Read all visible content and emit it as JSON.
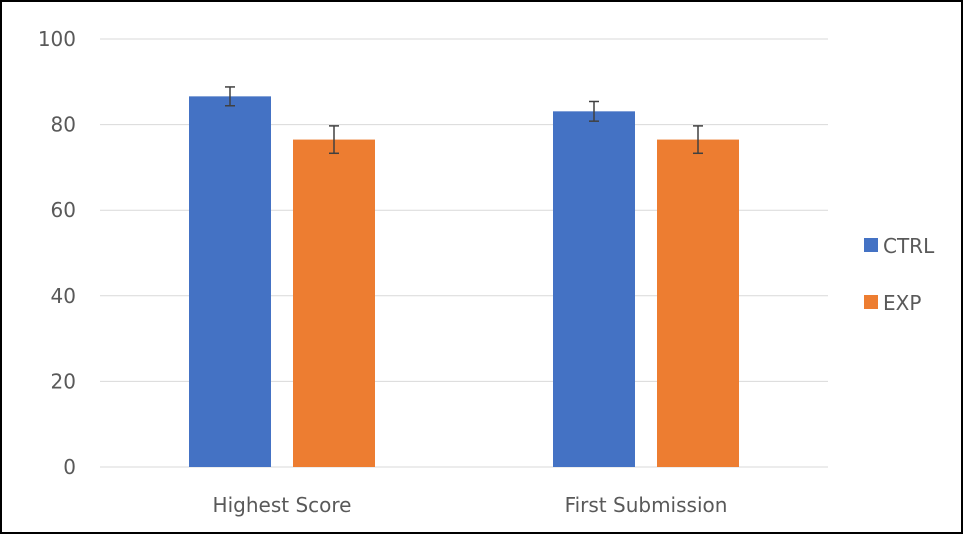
{
  "chart_data": {
    "type": "bar",
    "categories": [
      "Highest Score",
      "First Submission"
    ],
    "series": [
      {
        "name": "CTRL",
        "color": "#4472C4",
        "values": [
          86.6,
          83.1
        ],
        "errors": [
          2.2,
          2.3
        ]
      },
      {
        "name": "EXP",
        "color": "#ED7D31",
        "values": [
          76.5,
          76.5
        ],
        "errors": [
          3.2,
          3.2
        ]
      }
    ],
    "title": "",
    "xlabel": "",
    "ylabel": "",
    "ylim": [
      0,
      100
    ],
    "yticks": [
      0,
      20,
      40,
      60,
      80,
      100
    ],
    "grid": true,
    "legend_position": "right",
    "error_bars": true,
    "colors": {
      "gridline": "#D9D9D9",
      "axis_text": "#595959",
      "error_bar": "#404040",
      "border": "#000000"
    }
  }
}
